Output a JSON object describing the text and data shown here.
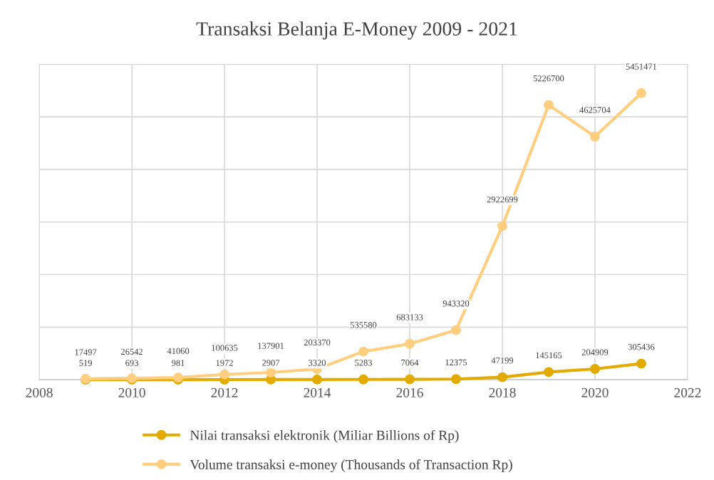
{
  "chart_data": {
    "type": "line",
    "title": "Transaksi Belanja E-Money 2009 - 2021",
    "x": [
      2009,
      2010,
      2011,
      2012,
      2013,
      2014,
      2015,
      2016,
      2017,
      2018,
      2019,
      2020,
      2021
    ],
    "series": [
      {
        "name": "Nilai transaksi elektronik (Miliar Billions of Rp)",
        "color": "#e3aa00",
        "values": [
          519,
          693,
          981,
          1972,
          2907,
          3320,
          5283,
          7064,
          12375,
          47199,
          145165,
          204909,
          305436
        ]
      },
      {
        "name": "Volume transaksi e-money (Thousands of Transaction Rp)",
        "color": "#ffcf7f",
        "values": [
          17497,
          26542,
          41060,
          100635,
          137901,
          203370,
          535580,
          683133,
          943320,
          2922699,
          5226700,
          4625704,
          5451471
        ]
      }
    ],
    "xlim": [
      2008,
      2022
    ],
    "xticks": [
      2008,
      2010,
      2012,
      2014,
      2016,
      2018,
      2020,
      2022
    ],
    "ylim": [
      0,
      6000000
    ],
    "yticks": [
      {
        "value": 0,
        "label": null
      },
      {
        "value": 1000000,
        "label": null
      },
      {
        "value": 2000000,
        "label": null
      },
      {
        "value": 3000000,
        "label": null
      },
      {
        "value": 4000000,
        "label": null
      },
      {
        "value": 5000000,
        "label": null
      },
      {
        "value": 6000000,
        "label": null
      }
    ],
    "tick_labels": "x",
    "grid": true,
    "legend": "bottom",
    "marker": "circle",
    "line_style": "solid",
    "data_labels": true
  }
}
